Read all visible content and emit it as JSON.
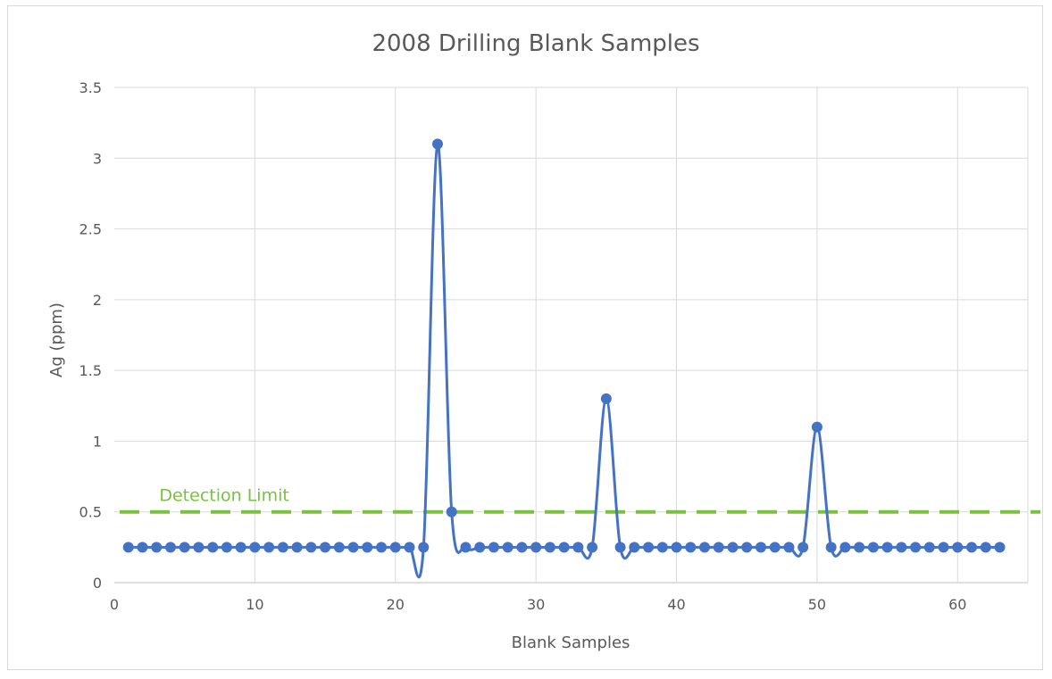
{
  "chart_data": {
    "type": "line",
    "title": "2008 Drilling Blank Samples",
    "xlabel": "Blank Samples",
    "ylabel": "Ag (ppm)",
    "xlim": [
      0,
      65
    ],
    "ylim": [
      0,
      3.5
    ],
    "x_ticks": [
      0,
      10,
      20,
      30,
      40,
      50,
      60
    ],
    "y_ticks": [
      0,
      0.5,
      1,
      1.5,
      2,
      2.5,
      3,
      3.5
    ],
    "y_tick_labels": [
      "0",
      "0.5",
      "1",
      "1.5",
      "2",
      "2.5",
      "3",
      "3.5"
    ],
    "grid": true,
    "smoothed": true,
    "series": [
      {
        "color": "#4472c4",
        "x": [
          1,
          2,
          3,
          4,
          5,
          6,
          7,
          8,
          9,
          10,
          11,
          12,
          13,
          14,
          15,
          16,
          17,
          18,
          19,
          20,
          21,
          22,
          23,
          24,
          25,
          26,
          27,
          28,
          29,
          30,
          31,
          32,
          33,
          34,
          35,
          36,
          37,
          38,
          39,
          40,
          41,
          42,
          43,
          44,
          45,
          46,
          47,
          48,
          49,
          50,
          51,
          52,
          53,
          54,
          55,
          56,
          57,
          58,
          59,
          60,
          61,
          62,
          63
        ],
        "values": [
          0.25,
          0.25,
          0.25,
          0.25,
          0.25,
          0.25,
          0.25,
          0.25,
          0.25,
          0.25,
          0.25,
          0.25,
          0.25,
          0.25,
          0.25,
          0.25,
          0.25,
          0.25,
          0.25,
          0.25,
          0.25,
          0.25,
          3.1,
          0.5,
          0.25,
          0.25,
          0.25,
          0.25,
          0.25,
          0.25,
          0.25,
          0.25,
          0.25,
          0.25,
          1.3,
          0.25,
          0.25,
          0.25,
          0.25,
          0.25,
          0.25,
          0.25,
          0.25,
          0.25,
          0.25,
          0.25,
          0.25,
          0.25,
          0.25,
          1.1,
          0.25,
          0.25,
          0.25,
          0.25,
          0.25,
          0.25,
          0.25,
          0.25,
          0.25,
          0.25,
          0.25,
          0.25,
          0.25
        ]
      }
    ],
    "reference_line": {
      "label": "Detection Limit",
      "y": 0.5,
      "color": "#7ac143",
      "style": "dashed"
    }
  }
}
